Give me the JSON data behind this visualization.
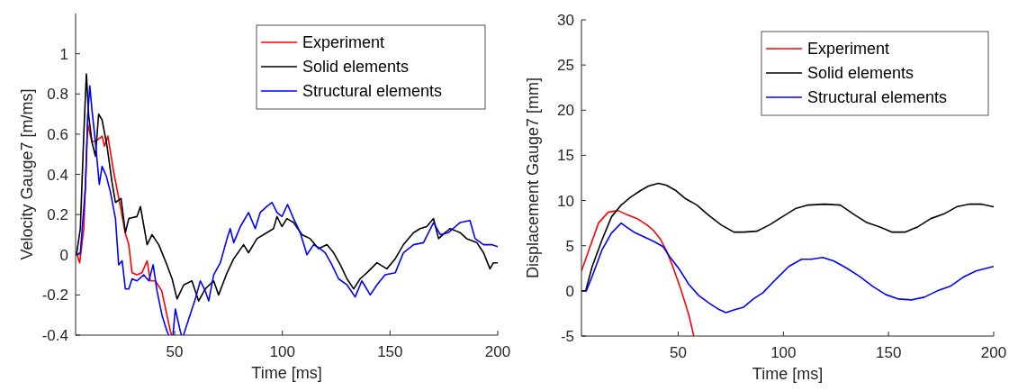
{
  "chart_data": [
    {
      "type": "line",
      "xlabel": "Time [ms]",
      "ylabel": "Velocity Gauge7 [m/ms]",
      "xlim": [
        4,
        200
      ],
      "xticks": [
        50,
        100,
        150,
        200
      ],
      "ylim": [
        -0.4,
        1.2
      ],
      "yticks": [
        -0.4,
        -0.2,
        0,
        0.2,
        0.4,
        0.6,
        0.8,
        1
      ],
      "legend": "top right",
      "grid": false,
      "series": [
        {
          "name": "Experiment",
          "color": "#ff0000",
          "x": [
            4.4,
            5.9,
            7.8,
            9.6,
            11.6,
            14,
            16.3,
            17.4,
            19,
            21.7,
            24.8,
            27,
            28.7,
            30.2,
            32.5,
            34.8,
            37.2,
            38.7,
            41,
            44,
            48,
            48.6
          ],
          "values": [
            0.01,
            -0.04,
            0.13,
            0.65,
            0.56,
            0.57,
            0.59,
            0.54,
            0.59,
            0.41,
            0.24,
            0.11,
            0.05,
            -0.09,
            -0.1,
            -0.09,
            -0.03,
            -0.13,
            -0.13,
            -0.18,
            -0.38,
            -0.4
          ]
        },
        {
          "name": "Solid elements",
          "color": "#000000",
          "x": [
            4.4,
            6.2,
            7.8,
            9,
            10.1,
            11.6,
            13.2,
            14.7,
            16.3,
            18.6,
            20.9,
            22.5,
            25.1,
            27.1,
            28.7,
            32.5,
            34.1,
            37.2,
            39.5,
            42.6,
            46.4,
            48.8,
            51.1,
            54.2,
            58,
            61.1,
            64.2,
            68.1,
            70.4,
            74.3,
            77.4,
            82,
            84.3,
            88.2,
            92.8,
            95.9,
            97.5,
            99.8,
            102.1,
            105.2,
            109.1,
            112.9,
            116.8,
            120.7,
            123.8,
            126.9,
            130,
            133.1,
            136.1,
            139.2,
            143.9,
            148.5,
            152.4,
            156.2,
            160.9,
            164,
            167,
            170.2,
            172.5,
            175.6,
            177.9,
            182.5,
            185.6,
            190.3,
            193.4,
            196.4,
            198,
            200
          ],
          "values": [
            0,
            0.13,
            0.6,
            0.9,
            0.69,
            0.56,
            0.49,
            0.7,
            0.67,
            0.54,
            0.36,
            0.26,
            0.28,
            0.11,
            0.18,
            0.19,
            0.24,
            0.05,
            0.1,
            0.05,
            -0.05,
            -0.12,
            -0.22,
            -0.15,
            -0.13,
            -0.23,
            -0.17,
            -0.13,
            -0.2,
            -0.09,
            -0.02,
            0.05,
            0.01,
            0.08,
            0.11,
            0.13,
            0.19,
            0.14,
            0.18,
            0.16,
            0.1,
            0.08,
            0.03,
            0.05,
            0.01,
            -0.05,
            -0.12,
            -0.17,
            -0.12,
            -0.09,
            -0.04,
            -0.07,
            -0.02,
            0.05,
            0.11,
            0.13,
            0.14,
            0.18,
            0.08,
            0.11,
            0.13,
            0.11,
            0.08,
            0.06,
            0.01,
            -0.07,
            -0.04,
            -0.04
          ]
        },
        {
          "name": "Structural elements",
          "color": "#0000ff",
          "x": [
            4.4,
            6.2,
            8.6,
            9.6,
            10.6,
            11.6,
            13.2,
            15,
            16.3,
            18.3,
            20.2,
            22.5,
            24,
            25.6,
            27.1,
            28.7,
            30.2,
            32.5,
            35.6,
            38,
            40,
            41.8,
            44.1,
            46.4,
            47.2,
            48.2,
            49.2,
            50.3,
            52.6,
            53.1,
            53.6,
            54.1,
            56.5,
            59.6,
            61.9,
            64.2,
            65.8,
            68.1,
            71.2,
            74.3,
            75.8,
            77.4,
            80.5,
            84.3,
            87.4,
            89.7,
            92.8,
            95.2,
            97.5,
            99.8,
            102.4,
            105.2,
            108.3,
            111.4,
            114.5,
            117.6,
            119.9,
            123,
            126.1,
            130,
            133.8,
            136.9,
            140.8,
            143.9,
            147.7,
            152.4,
            156.2,
            160.9,
            165.5,
            170.2,
            173.3,
            177.1,
            182.5,
            187.1,
            189.5,
            193.4,
            197.2,
            200
          ],
          "values": [
            0,
            0.01,
            0.34,
            0.69,
            0.84,
            0.72,
            0.56,
            0.35,
            0.44,
            0.39,
            0.31,
            0.18,
            -0.05,
            -0.03,
            -0.17,
            -0.17,
            -0.12,
            -0.13,
            -0.1,
            -0.13,
            -0.05,
            -0.18,
            -0.3,
            -0.38,
            -0.4,
            null,
            -0.4,
            -0.27,
            -0.38,
            -0.4,
            null,
            -0.4,
            -0.32,
            -0.22,
            -0.13,
            -0.18,
            -0.23,
            -0.1,
            -0.04,
            0.08,
            0.13,
            0.06,
            0.14,
            0.21,
            0.13,
            0.21,
            0.24,
            0.26,
            0.21,
            0.19,
            0.25,
            0.18,
            0.11,
            0,
            0.05,
            0.03,
            0.01,
            -0.05,
            -0.12,
            -0.15,
            -0.21,
            -0.13,
            -0.2,
            -0.15,
            -0.1,
            -0.09,
            0.01,
            0.05,
            0.06,
            0.16,
            0.1,
            0.11,
            0.16,
            0.17,
            0.08,
            0.05,
            0.05,
            0.04
          ]
        }
      ]
    },
    {
      "type": "line",
      "xlabel": "Time [ms]",
      "ylabel": "Displacement Gauge7 [mm]",
      "xlim": [
        4,
        200
      ],
      "xticks": [
        50,
        100,
        150,
        200
      ],
      "ylim": [
        -5,
        30
      ],
      "yticks": [
        -5,
        0,
        5,
        10,
        15,
        20,
        25,
        30
      ],
      "legend": "top right",
      "grid": false,
      "series": [
        {
          "name": "Experiment",
          "color": "#ff0000",
          "x": [
            4,
            7.5,
            12.1,
            16.7,
            21.3,
            25.9,
            30.5,
            35.1,
            38.2,
            41.3,
            44.3,
            47.4,
            51.2,
            55.1,
            57.4
          ],
          "values": [
            2.2,
            4.5,
            7.5,
            8.7,
            8.9,
            8.4,
            8,
            7.3,
            6.7,
            5.8,
            4.5,
            2.7,
            0.2,
            -2.7,
            -5
          ]
        },
        {
          "name": "Solid elements",
          "color": "#000000",
          "x": [
            4,
            6,
            9.1,
            13.7,
            18.3,
            22.9,
            27.5,
            32.1,
            35.9,
            40.5,
            44.3,
            48.9,
            53.5,
            58.9,
            64.3,
            70.4,
            76.5,
            81.1,
            87.3,
            93.4,
            99.5,
            105.7,
            111.8,
            119.5,
            127.1,
            133.3,
            139.4,
            145.6,
            151.7,
            157.8,
            164,
            170.1,
            176.2,
            182.4,
            188.5,
            193.9,
            200
          ],
          "values": [
            0,
            0,
            2.7,
            5.6,
            8.2,
            9.5,
            10.4,
            11.1,
            11.6,
            11.9,
            11.7,
            11.1,
            10.2,
            9.5,
            8.4,
            7.3,
            6.5,
            6.5,
            6.6,
            7.3,
            8.2,
            9.1,
            9.5,
            9.6,
            9.5,
            8.5,
            7.6,
            7.1,
            6.5,
            6.5,
            7.1,
            8,
            8.5,
            9.3,
            9.6,
            9.6,
            9.3
          ]
        },
        {
          "name": "Structural elements",
          "color": "#0000ff",
          "x": [
            6.3,
            9.1,
            13.7,
            18.3,
            22.9,
            25.2,
            29,
            33.6,
            38.2,
            42.8,
            45.9,
            50.5,
            55.1,
            59.7,
            64.3,
            68.9,
            72.7,
            76.5,
            81.1,
            85.7,
            90.3,
            96.5,
            102.6,
            108.7,
            113.3,
            118.7,
            124,
            130.2,
            136.3,
            142.5,
            148.6,
            154.8,
            160.9,
            167,
            173.2,
            179.3,
            185.4,
            191.6,
            200
          ],
          "values": [
            0,
            1.6,
            4.5,
            6.4,
            7.5,
            7.1,
            6.5,
            6,
            5.5,
            4.9,
            3.8,
            2.4,
            0.7,
            -0.5,
            -1.3,
            -2,
            -2.4,
            -2.1,
            -1.8,
            -0.9,
            -0.2,
            1.3,
            2.7,
            3.5,
            3.5,
            3.7,
            3.3,
            2.5,
            1.6,
            0.5,
            -0.4,
            -0.9,
            -1,
            -0.7,
            0,
            0.5,
            1.5,
            2.2,
            2.7
          ]
        }
      ]
    }
  ]
}
